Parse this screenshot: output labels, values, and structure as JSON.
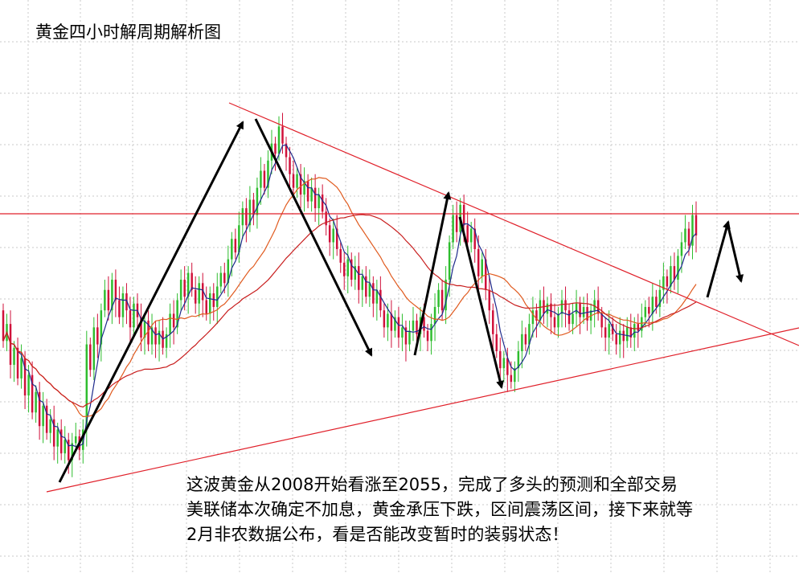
{
  "title": "黄金四小时解周期解析图",
  "commentary": [
    "这波黄金从2008开始看涨至2055，完成了多头的预测和全部交易",
    "美联储本次确定不加息，黄金承压下跌，区间震荡区间，接下来就等",
    "2月非农数据公布，看是否能改变暂时的装弱状态！"
  ],
  "colors": {
    "up_candle": "#2ebd2e",
    "down_candle": "#d0103a",
    "ma_short": "#1e2a8c",
    "ma_medium": "#e05a1e",
    "ma_long": "#c81e1e",
    "trendline": "#e0202a",
    "horizontal_level": "#e0202a",
    "arrow": "#000000",
    "grid": "#c8c8c8"
  },
  "chart_data": {
    "type": "candlestick",
    "grid": true,
    "price_values": [
      2008,
      2055
    ],
    "candles": [
      {
        "o": 300,
        "c": 282
      },
      {
        "o": 282,
        "c": 292
      },
      {
        "o": 292,
        "c": 268
      },
      {
        "o": 268,
        "c": 278
      },
      {
        "o": 278,
        "c": 260
      },
      {
        "o": 260,
        "c": 272
      },
      {
        "o": 272,
        "c": 250
      },
      {
        "o": 250,
        "c": 262
      },
      {
        "o": 262,
        "c": 240
      },
      {
        "o": 240,
        "c": 252
      },
      {
        "o": 252,
        "c": 232
      },
      {
        "o": 232,
        "c": 244
      },
      {
        "o": 244,
        "c": 228
      },
      {
        "o": 228,
        "c": 236
      },
      {
        "o": 236,
        "c": 220
      },
      {
        "o": 220,
        "c": 230
      },
      {
        "o": 230,
        "c": 216
      },
      {
        "o": 216,
        "c": 224
      },
      {
        "o": 224,
        "c": 212
      },
      {
        "o": 212,
        "c": 222
      },
      {
        "o": 222,
        "c": 226
      },
      {
        "o": 226,
        "c": 218
      },
      {
        "o": 218,
        "c": 230
      },
      {
        "o": 230,
        "c": 280
      },
      {
        "o": 280,
        "c": 265
      },
      {
        "o": 265,
        "c": 290
      },
      {
        "o": 290,
        "c": 280
      },
      {
        "o": 280,
        "c": 300
      },
      {
        "o": 300,
        "c": 312
      },
      {
        "o": 312,
        "c": 300
      },
      {
        "o": 300,
        "c": 318
      },
      {
        "o": 318,
        "c": 306
      },
      {
        "o": 306,
        "c": 296
      },
      {
        "o": 296,
        "c": 310
      },
      {
        "o": 310,
        "c": 300
      },
      {
        "o": 300,
        "c": 290
      },
      {
        "o": 290,
        "c": 304
      },
      {
        "o": 304,
        "c": 296
      },
      {
        "o": 296,
        "c": 284
      },
      {
        "o": 284,
        "c": 294
      },
      {
        "o": 294,
        "c": 280
      },
      {
        "o": 280,
        "c": 290
      },
      {
        "o": 290,
        "c": 280
      },
      {
        "o": 280,
        "c": 288
      },
      {
        "o": 288,
        "c": 278
      },
      {
        "o": 278,
        "c": 286
      },
      {
        "o": 286,
        "c": 298
      },
      {
        "o": 298,
        "c": 290
      },
      {
        "o": 290,
        "c": 306
      },
      {
        "o": 306,
        "c": 318
      },
      {
        "o": 318,
        "c": 308
      },
      {
        "o": 308,
        "c": 322
      },
      {
        "o": 322,
        "c": 312
      },
      {
        "o": 312,
        "c": 304
      },
      {
        "o": 304,
        "c": 316
      },
      {
        "o": 316,
        "c": 306
      },
      {
        "o": 306,
        "c": 298
      },
      {
        "o": 298,
        "c": 310
      },
      {
        "o": 310,
        "c": 302
      },
      {
        "o": 302,
        "c": 314
      },
      {
        "o": 314,
        "c": 322
      },
      {
        "o": 322,
        "c": 316
      },
      {
        "o": 316,
        "c": 330
      },
      {
        "o": 330,
        "c": 342
      },
      {
        "o": 342,
        "c": 334
      },
      {
        "o": 334,
        "c": 350
      },
      {
        "o": 350,
        "c": 360
      },
      {
        "o": 360,
        "c": 350
      },
      {
        "o": 350,
        "c": 365
      },
      {
        "o": 365,
        "c": 356
      },
      {
        "o": 356,
        "c": 372
      },
      {
        "o": 372,
        "c": 382
      },
      {
        "o": 382,
        "c": 372
      },
      {
        "o": 372,
        "c": 388
      },
      {
        "o": 388,
        "c": 398
      },
      {
        "o": 398,
        "c": 392
      },
      {
        "o": 392,
        "c": 408
      },
      {
        "o": 408,
        "c": 398
      },
      {
        "o": 398,
        "c": 390
      },
      {
        "o": 390,
        "c": 380
      },
      {
        "o": 380,
        "c": 372
      },
      {
        "o": 372,
        "c": 380
      },
      {
        "o": 380,
        "c": 368
      },
      {
        "o": 368,
        "c": 376
      },
      {
        "o": 376,
        "c": 364
      },
      {
        "o": 364,
        "c": 372
      },
      {
        "o": 372,
        "c": 360
      },
      {
        "o": 360,
        "c": 368
      },
      {
        "o": 368,
        "c": 358
      },
      {
        "o": 358,
        "c": 350
      },
      {
        "o": 350,
        "c": 340
      },
      {
        "o": 340,
        "c": 348
      },
      {
        "o": 348,
        "c": 336
      },
      {
        "o": 336,
        "c": 328
      },
      {
        "o": 328,
        "c": 320
      },
      {
        "o": 320,
        "c": 330
      },
      {
        "o": 330,
        "c": 318
      },
      {
        "o": 318,
        "c": 326
      },
      {
        "o": 326,
        "c": 312
      },
      {
        "o": 312,
        "c": 320
      },
      {
        "o": 320,
        "c": 308
      },
      {
        "o": 308,
        "c": 316
      },
      {
        "o": 316,
        "c": 304
      },
      {
        "o": 304,
        "c": 312
      },
      {
        "o": 312,
        "c": 300
      },
      {
        "o": 300,
        "c": 290
      },
      {
        "o": 290,
        "c": 298
      },
      {
        "o": 298,
        "c": 288
      },
      {
        "o": 288,
        "c": 296
      },
      {
        "o": 296,
        "c": 284
      },
      {
        "o": 284,
        "c": 290
      },
      {
        "o": 290,
        "c": 280
      },
      {
        "o": 280,
        "c": 288
      },
      {
        "o": 288,
        "c": 294
      },
      {
        "o": 294,
        "c": 286
      },
      {
        "o": 286,
        "c": 296
      },
      {
        "o": 296,
        "c": 288
      },
      {
        "o": 288,
        "c": 282
      },
      {
        "o": 282,
        "c": 292
      },
      {
        "o": 292,
        "c": 302
      },
      {
        "o": 302,
        "c": 312
      },
      {
        "o": 312,
        "c": 300
      },
      {
        "o": 300,
        "c": 318
      },
      {
        "o": 318,
        "c": 340
      },
      {
        "o": 340,
        "c": 356
      },
      {
        "o": 356,
        "c": 346
      },
      {
        "o": 346,
        "c": 362
      },
      {
        "o": 362,
        "c": 350
      },
      {
        "o": 350,
        "c": 340
      },
      {
        "o": 340,
        "c": 348
      },
      {
        "o": 348,
        "c": 336
      },
      {
        "o": 336,
        "c": 320
      },
      {
        "o": 320,
        "c": 330
      },
      {
        "o": 330,
        "c": 312
      },
      {
        "o": 312,
        "c": 300
      },
      {
        "o": 300,
        "c": 286
      },
      {
        "o": 286,
        "c": 276
      },
      {
        "o": 276,
        "c": 266
      },
      {
        "o": 266,
        "c": 272
      },
      {
        "o": 272,
        "c": 262
      },
      {
        "o": 262,
        "c": 258
      },
      {
        "o": 258,
        "c": 266
      },
      {
        "o": 266,
        "c": 276
      },
      {
        "o": 276,
        "c": 286
      },
      {
        "o": 286,
        "c": 280
      },
      {
        "o": 280,
        "c": 292
      },
      {
        "o": 292,
        "c": 300
      },
      {
        "o": 300,
        "c": 294
      },
      {
        "o": 294,
        "c": 306
      },
      {
        "o": 306,
        "c": 298
      },
      {
        "o": 298,
        "c": 304
      },
      {
        "o": 304,
        "c": 296
      },
      {
        "o": 296,
        "c": 290
      },
      {
        "o": 290,
        "c": 298
      },
      {
        "o": 298,
        "c": 306
      },
      {
        "o": 306,
        "c": 300
      },
      {
        "o": 300,
        "c": 292
      },
      {
        "o": 292,
        "c": 298
      },
      {
        "o": 298,
        "c": 304
      },
      {
        "o": 304,
        "c": 296
      },
      {
        "o": 296,
        "c": 302
      },
      {
        "o": 302,
        "c": 294
      },
      {
        "o": 294,
        "c": 300
      },
      {
        "o": 300,
        "c": 306
      },
      {
        "o": 306,
        "c": 298
      },
      {
        "o": 298,
        "c": 290
      },
      {
        "o": 290,
        "c": 284
      },
      {
        "o": 284,
        "c": 292
      },
      {
        "o": 292,
        "c": 286
      },
      {
        "o": 286,
        "c": 280
      },
      {
        "o": 280,
        "c": 288
      },
      {
        "o": 288,
        "c": 282
      },
      {
        "o": 282,
        "c": 290
      },
      {
        "o": 290,
        "c": 284
      },
      {
        "o": 284,
        "c": 292
      },
      {
        "o": 292,
        "c": 288
      },
      {
        "o": 288,
        "c": 296
      },
      {
        "o": 296,
        "c": 302
      },
      {
        "o": 302,
        "c": 298
      },
      {
        "o": 298,
        "c": 308
      },
      {
        "o": 308,
        "c": 302
      },
      {
        "o": 302,
        "c": 312
      },
      {
        "o": 312,
        "c": 320
      },
      {
        "o": 320,
        "c": 314
      },
      {
        "o": 314,
        "c": 326
      },
      {
        "o": 326,
        "c": 318
      },
      {
        "o": 318,
        "c": 332
      },
      {
        "o": 332,
        "c": 340
      },
      {
        "o": 340,
        "c": 348
      },
      {
        "o": 348,
        "c": 338
      },
      {
        "o": 338,
        "c": 356
      },
      {
        "o": 356,
        "c": 344
      }
    ],
    "moving_averages": [
      {
        "key": "ma_short",
        "period": 5
      },
      {
        "key": "ma_medium",
        "period": 20
      },
      {
        "key": "ma_long",
        "period": 40
      }
    ]
  }
}
